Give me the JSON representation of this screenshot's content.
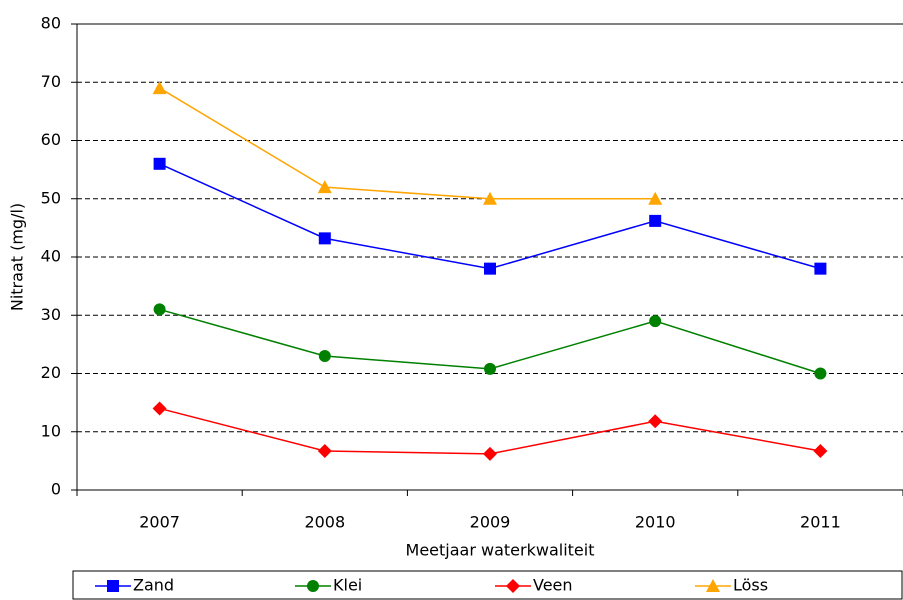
{
  "chart_data": {
    "type": "line",
    "x_label": "Meetjaar waterkwaliteit",
    "y_label": "Nitraat (mg/l)",
    "categories": [
      "2007",
      "2008",
      "2009",
      "2010",
      "2011"
    ],
    "series": [
      {
        "name": "Zand",
        "color": "#0000ff",
        "marker": "square",
        "values": [
          56,
          43.2,
          38,
          46.2,
          38
        ]
      },
      {
        "name": "Klei",
        "color": "#008000",
        "marker": "circle",
        "values": [
          31,
          23,
          20.8,
          29,
          20
        ]
      },
      {
        "name": "Veen",
        "color": "#ff0000",
        "marker": "diamond",
        "values": [
          14,
          6.7,
          6.2,
          11.8,
          6.7
        ]
      },
      {
        "name": "Löss",
        "color": "#ffa500",
        "marker": "triangle",
        "values": [
          69,
          52,
          50,
          50,
          null
        ]
      }
    ],
    "ylim": [
      0,
      80
    ],
    "yticks": [
      0,
      10,
      20,
      30,
      40,
      50,
      60,
      70,
      80
    ],
    "grid": true,
    "legend": "bottom"
  }
}
